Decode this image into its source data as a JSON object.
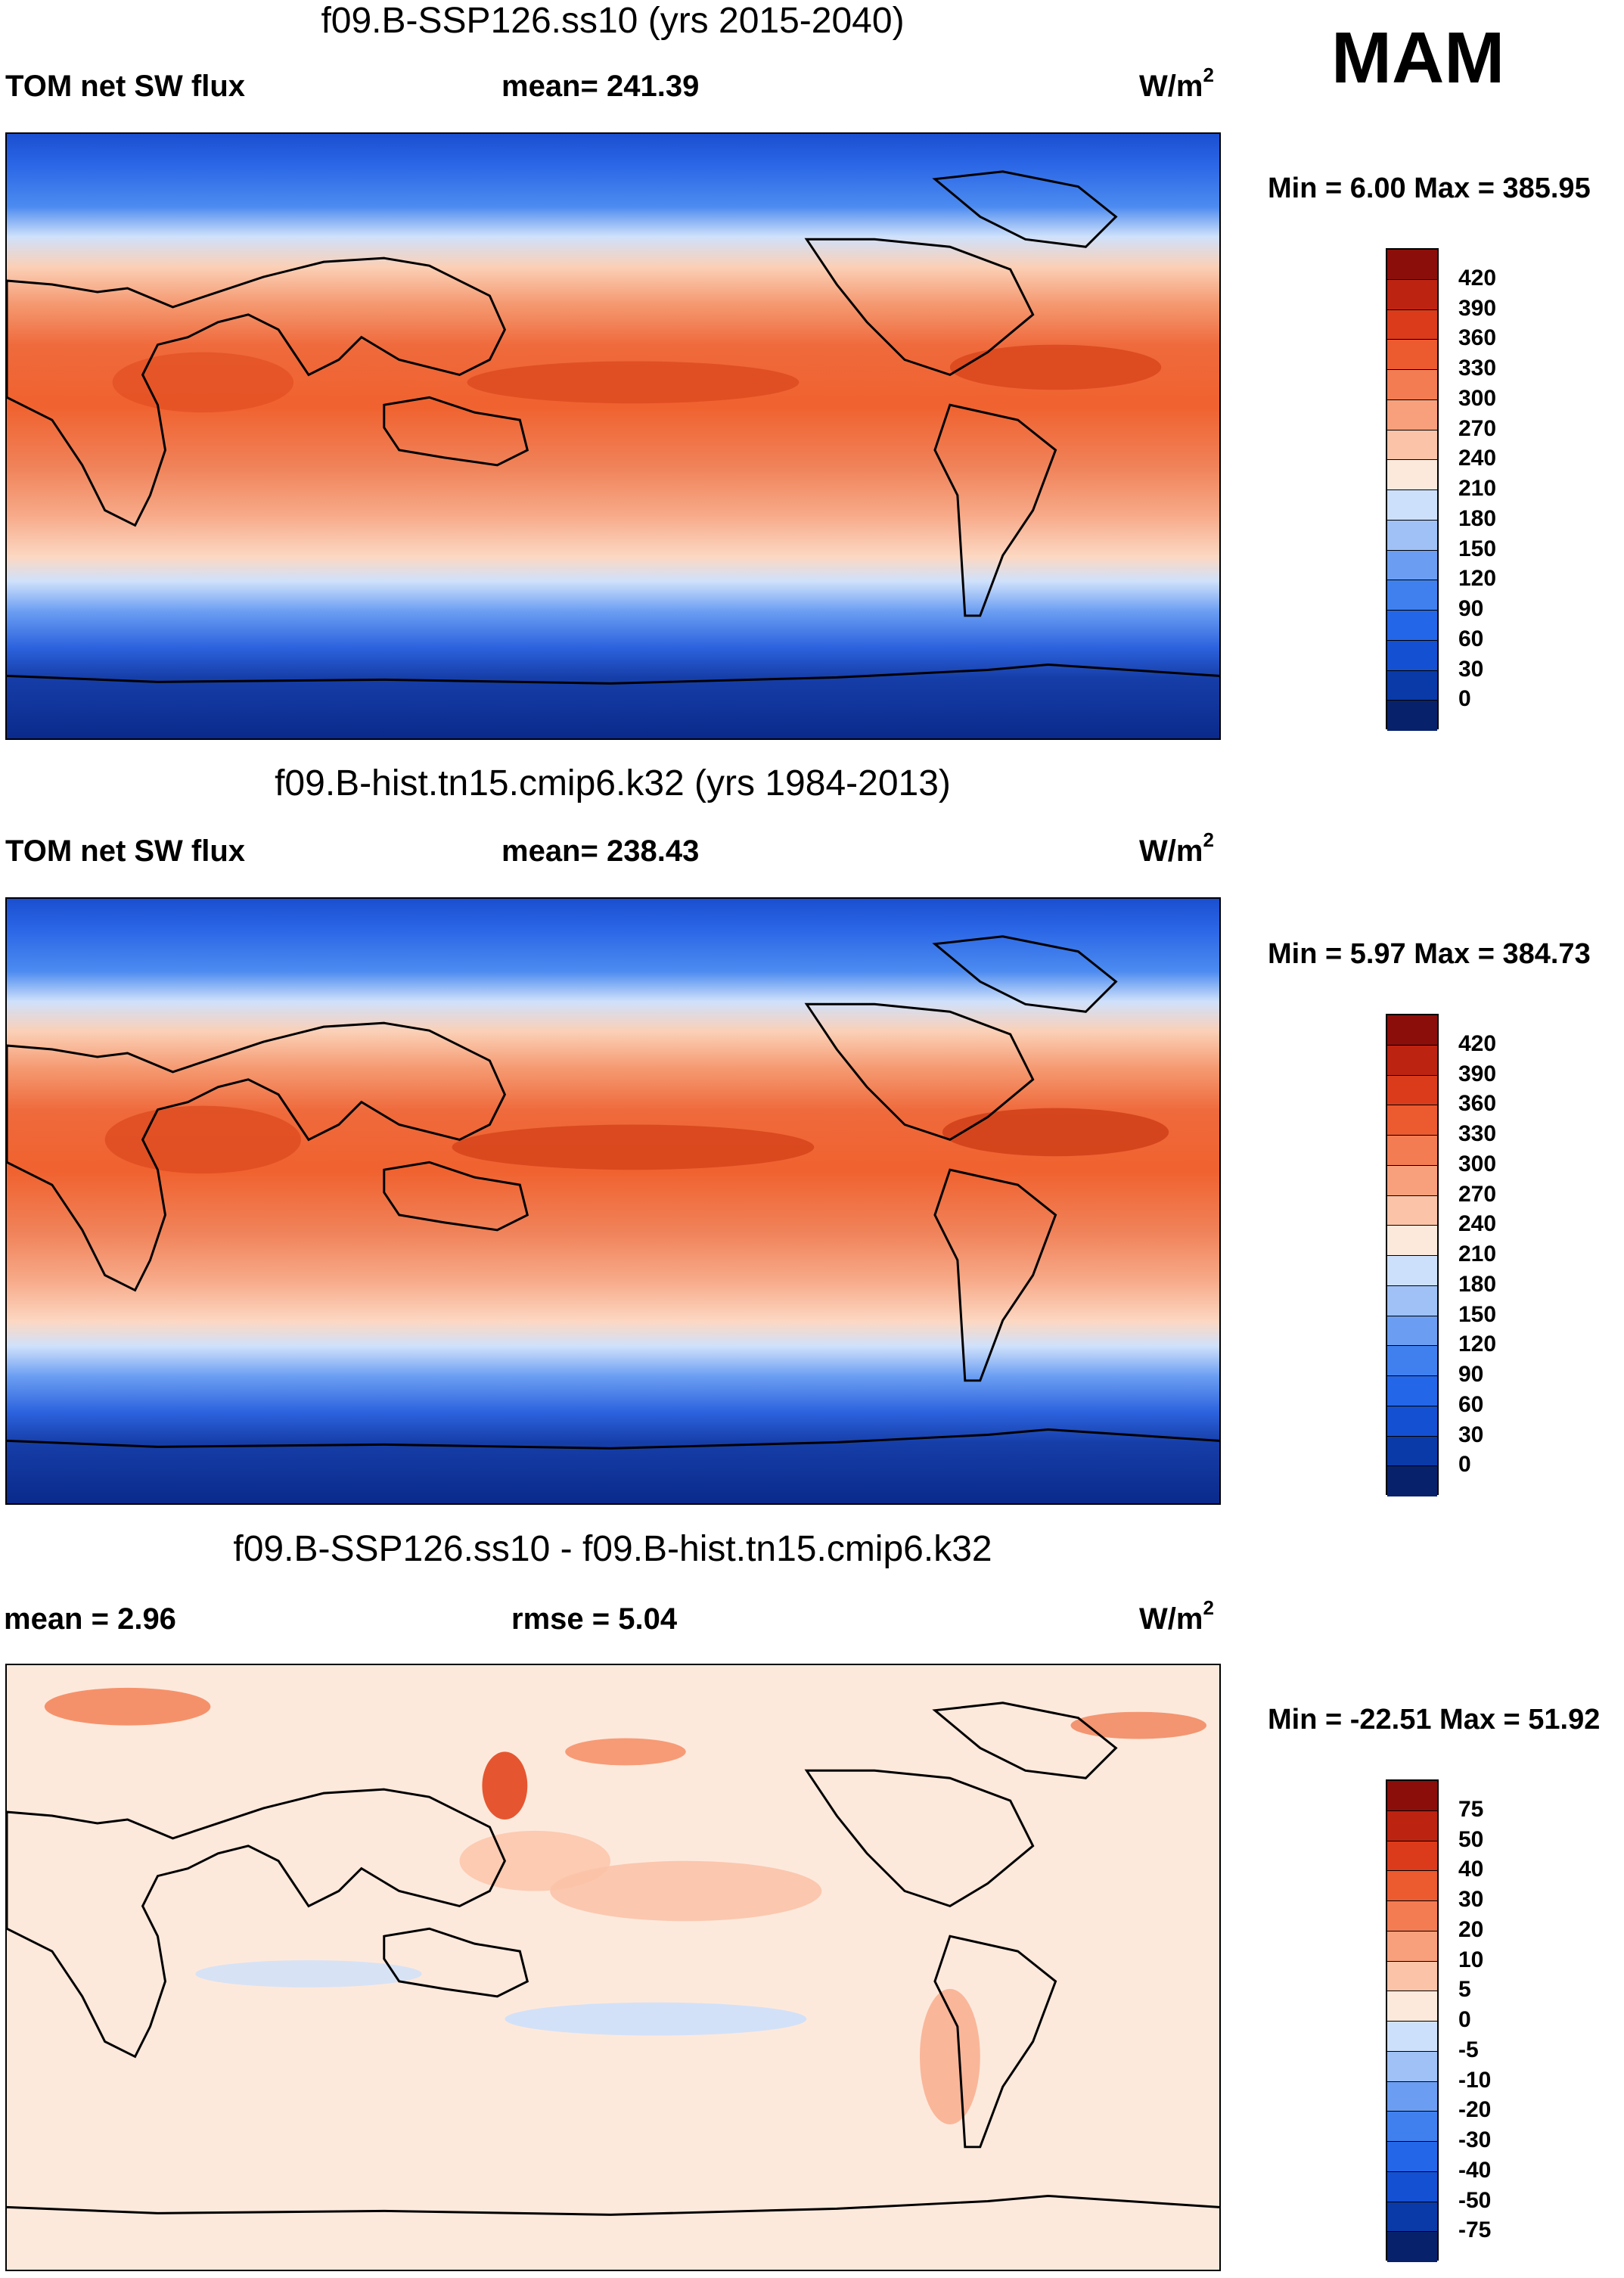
{
  "season": "MAM",
  "units_main": "W/m",
  "units_sup": "2",
  "colors": {
    "abs_scale": [
      "#08216b",
      "#0a3aa8",
      "#1450d2",
      "#2466e8",
      "#3f80ee",
      "#6b9ef2",
      "#9fc1f6",
      "#cde0fb",
      "#fde9dc",
      "#fbc3a8",
      "#f8a07c",
      "#f47c52",
      "#ec5a2f",
      "#db3b1b",
      "#bd2311",
      "#8c0e0a"
    ],
    "diff_scale": [
      "#08216b",
      "#0a3aa8",
      "#1450d2",
      "#2466e8",
      "#3f80ee",
      "#6b9ef2",
      "#9fc1f6",
      "#cde0fb",
      "#fde9dc",
      "#fbc3a8",
      "#f8a07c",
      "#f47c52",
      "#ec5a2f",
      "#db3b1b",
      "#bd2311",
      "#8c0e0a"
    ]
  },
  "panels": [
    {
      "id": "p1",
      "title": "f09.B-SSP126.ss10 (yrs 2015-2040)",
      "left_label": "TOM net SW flux",
      "center_label": "mean= 241.39",
      "minmax": "Min =   6.00 Max = 385.95",
      "colorbar_labels": [
        "420",
        "390",
        "360",
        "330",
        "300",
        "270",
        "240",
        "210",
        "180",
        "150",
        "120",
        "90",
        "60",
        "30",
        "0"
      ]
    },
    {
      "id": "p2",
      "title": "f09.B-hist.tn15.cmip6.k32 (yrs 1984-2013)",
      "left_label": "TOM net SW flux",
      "center_label": "mean= 238.43",
      "minmax": "Min =   5.97 Max = 384.73",
      "colorbar_labels": [
        "420",
        "390",
        "360",
        "330",
        "300",
        "270",
        "240",
        "210",
        "180",
        "150",
        "120",
        "90",
        "60",
        "30",
        "0"
      ]
    },
    {
      "id": "p3",
      "title": "f09.B-SSP126.ss10 - f09.B-hist.tn15.cmip6.k32",
      "left_label": "mean =   2.96",
      "center_label": "rmse =   5.04",
      "minmax": "Min = -22.51 Max =  51.92",
      "colorbar_labels": [
        "75",
        "50",
        "40",
        "30",
        "20",
        "10",
        "5",
        "0",
        "-5",
        "-10",
        "-20",
        "-30",
        "-40",
        "-50",
        "-75"
      ]
    }
  ],
  "chart_data": [
    {
      "type": "heatmap",
      "title": "f09.B-SSP126.ss10 (yrs 2015-2040)",
      "variable": "TOM net SW flux",
      "season": "MAM",
      "units": "W/m2",
      "mean": 241.39,
      "min": 6.0,
      "max": 385.95,
      "contour_levels": [
        0,
        30,
        60,
        90,
        120,
        150,
        180,
        210,
        240,
        270,
        300,
        330,
        360,
        390,
        420
      ]
    },
    {
      "type": "heatmap",
      "title": "f09.B-hist.tn15.cmip6.k32 (yrs 1984-2013)",
      "variable": "TOM net SW flux",
      "season": "MAM",
      "units": "W/m2",
      "mean": 238.43,
      "min": 5.97,
      "max": 384.73,
      "contour_levels": [
        0,
        30,
        60,
        90,
        120,
        150,
        180,
        210,
        240,
        270,
        300,
        330,
        360,
        390,
        420
      ]
    },
    {
      "type": "heatmap",
      "title": "f09.B-SSP126.ss10 - f09.B-hist.tn15.cmip6.k32",
      "variable": "difference",
      "season": "MAM",
      "units": "W/m2",
      "mean": 2.96,
      "rmse": 5.04,
      "min": -22.51,
      "max": 51.92,
      "contour_levels": [
        -75,
        -50,
        -40,
        -30,
        -20,
        -10,
        -5,
        0,
        5,
        10,
        20,
        30,
        40,
        50,
        75
      ]
    }
  ]
}
